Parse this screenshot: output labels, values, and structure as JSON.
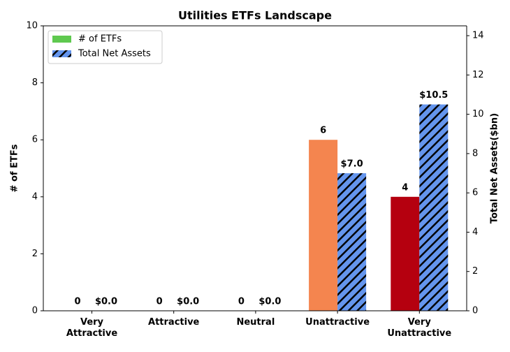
{
  "chart_data": {
    "type": "bar",
    "title": "Utilities ETFs Landscape",
    "categories": [
      "Very\nAttractive",
      "Attractive",
      "Neutral",
      "Unattractive",
      "Very\nUnattractive"
    ],
    "series": [
      {
        "name": "# of ETFs",
        "color": "#5fc94f",
        "bar_colors": [
          "#5fc94f",
          "#9bd25a",
          "#cccccc",
          "#f4854f",
          "#b5000f"
        ],
        "values": [
          0,
          0,
          0,
          6,
          4
        ]
      },
      {
        "name": "Total Net Assets",
        "axis": "y2",
        "color": "#6495ed",
        "hatch": true,
        "values": [
          0.0,
          0.0,
          0.0,
          7.0,
          10.5
        ],
        "value_labels": [
          "$0.0",
          "$0.0",
          "$0.0",
          "$7.0",
          "$10.5"
        ]
      }
    ],
    "ylabel": "# of ETFs",
    "y2label": "Total Net Assets($bn)",
    "ylim": [
      0,
      10
    ],
    "yticks": [
      0,
      2,
      4,
      6,
      8,
      10
    ],
    "y2lim": [
      0,
      14.5
    ],
    "y2ticks": [
      0,
      2,
      4,
      6,
      8,
      10,
      12,
      14
    ],
    "legend": "upper-left"
  }
}
